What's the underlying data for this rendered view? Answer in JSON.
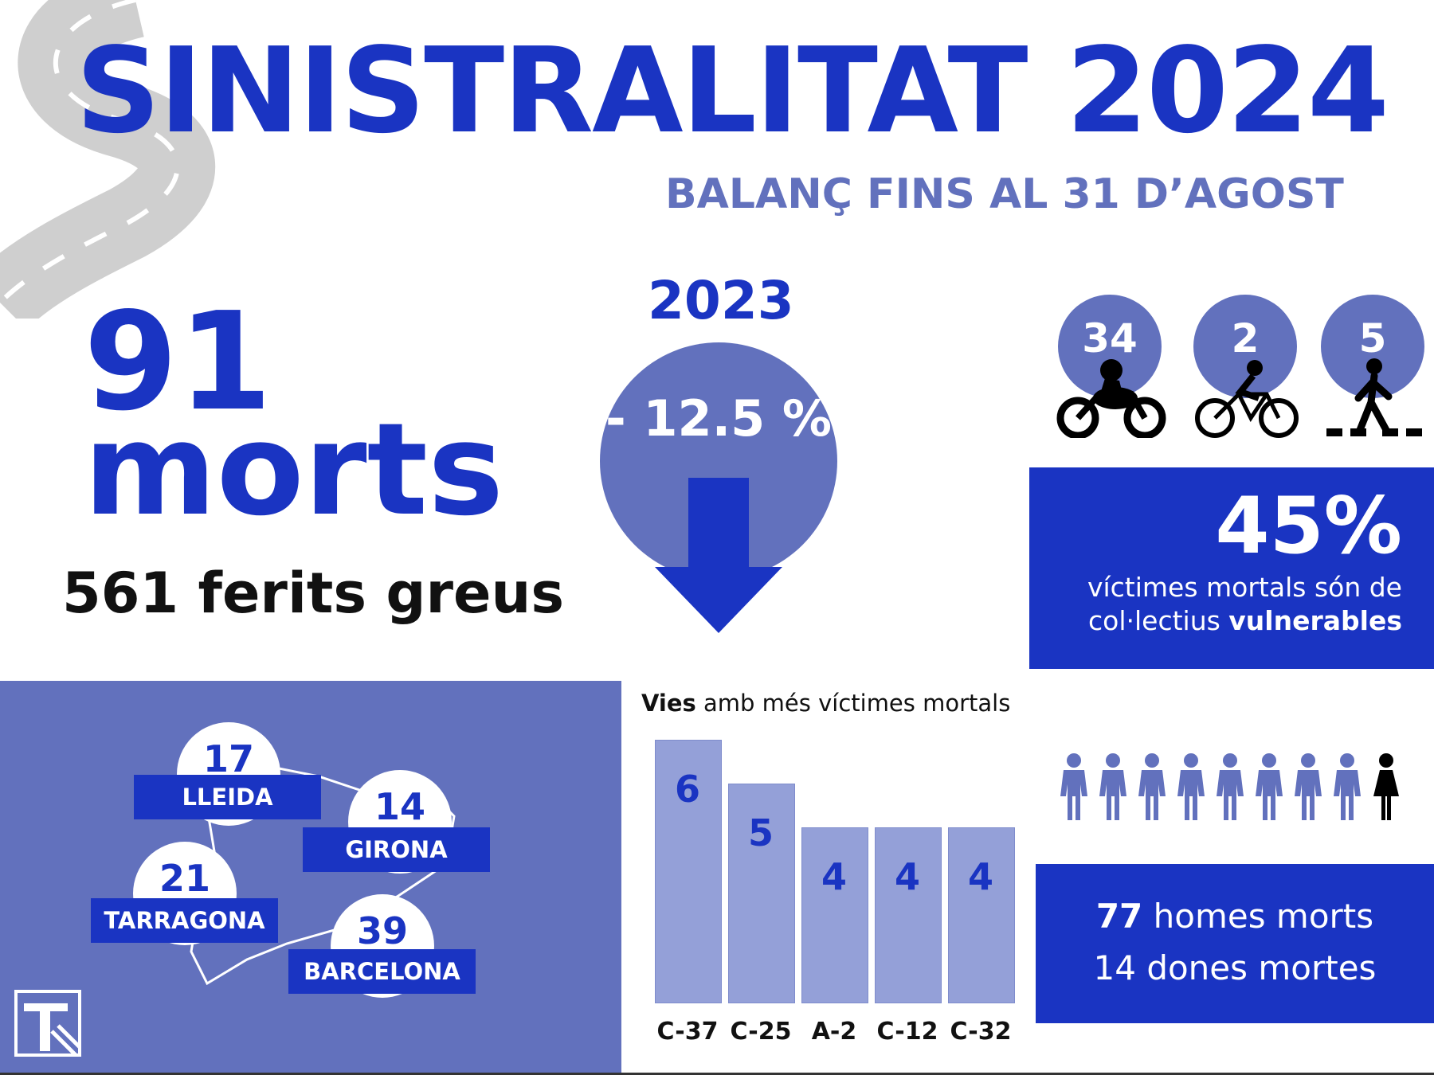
{
  "header": {
    "title": "SINISTRALITAT 2024",
    "subtitle": "BALANÇ FINS AL 31 D’AGOST"
  },
  "totals": {
    "deaths_number": "91",
    "deaths_word": "morts",
    "injured": "561 ferits greus"
  },
  "comparison": {
    "year": "2023",
    "change": "- 12.5 %"
  },
  "vulnerable": {
    "modes": [
      {
        "icon": "motorcycle-icon",
        "value": "34"
      },
      {
        "icon": "bicycle-icon",
        "value": "2"
      },
      {
        "icon": "pedestrian-icon",
        "value": "5"
      }
    ],
    "percent": "45%",
    "text_line1": "víctimes mortals són de",
    "text_line2_prefix": "col·lectius ",
    "text_line2_bold": "vulnerables"
  },
  "provinces": [
    {
      "name": "LLEIDA",
      "value": "17"
    },
    {
      "name": "GIRONA",
      "value": "14"
    },
    {
      "name": "TARRAGONA",
      "value": "21"
    },
    {
      "name": "BARCELONA",
      "value": "39"
    }
  ],
  "roads": {
    "title_bold": "Vies",
    "title_rest": " amb més víctimes mortals"
  },
  "chart_data": {
    "type": "bar",
    "categories": [
      "C-37",
      "C-25",
      "A-2",
      "C-12",
      "C-32"
    ],
    "values": [
      6,
      5,
      4,
      4,
      4
    ],
    "title": "Vies amb més víctimes mortals"
  },
  "gender": {
    "men_count": "77",
    "men_label": " homes morts",
    "women_line": "14 dones mortes"
  },
  "colors": {
    "primary": "#1a34c2",
    "secondary": "#6271bd",
    "bar": "#94a0d8"
  }
}
